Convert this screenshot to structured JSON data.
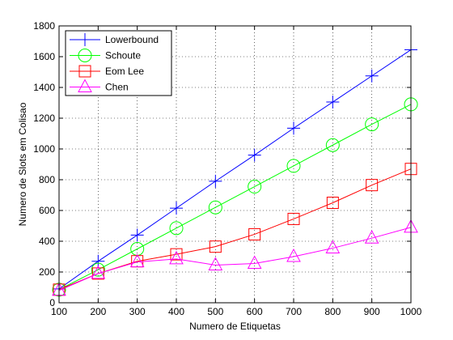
{
  "chart_data": {
    "type": "line",
    "xlabel": "Numero de Etiquetas",
    "ylabel": "Numero de Slots em Colisao",
    "xlim": [
      100,
      1000
    ],
    "ylim": [
      0,
      1800
    ],
    "x_ticks": [
      "100",
      "200",
      "300",
      "400",
      "500",
      "600",
      "700",
      "800",
      "900",
      "1000"
    ],
    "y_ticks": [
      "0",
      "200",
      "400",
      "600",
      "800",
      "1000",
      "1200",
      "1400",
      "1600",
      "1800"
    ],
    "grid": "on",
    "legend_position": "top-left",
    "x": [
      100,
      200,
      300,
      400,
      500,
      600,
      700,
      800,
      900,
      1000
    ],
    "series": [
      {
        "name": "Lowerbound",
        "color": "#0000ff",
        "marker": "plus",
        "values": [
          90,
          270,
          440,
          615,
          790,
          960,
          1135,
          1305,
          1475,
          1645
        ]
      },
      {
        "name": "Schoute",
        "color": "#00ff00",
        "marker": "circle",
        "values": [
          85,
          215,
          350,
          485,
          620,
          755,
          890,
          1025,
          1160,
          1290
        ]
      },
      {
        "name": "Eom Lee",
        "color": "#ff0000",
        "marker": "square",
        "values": [
          85,
          190,
          270,
          315,
          365,
          445,
          545,
          650,
          765,
          870
        ]
      },
      {
        "name": "Chen",
        "color": "#ff00ff",
        "marker": "triangle",
        "values": [
          80,
          190,
          265,
          285,
          245,
          255,
          300,
          355,
          420,
          490
        ]
      }
    ]
  }
}
